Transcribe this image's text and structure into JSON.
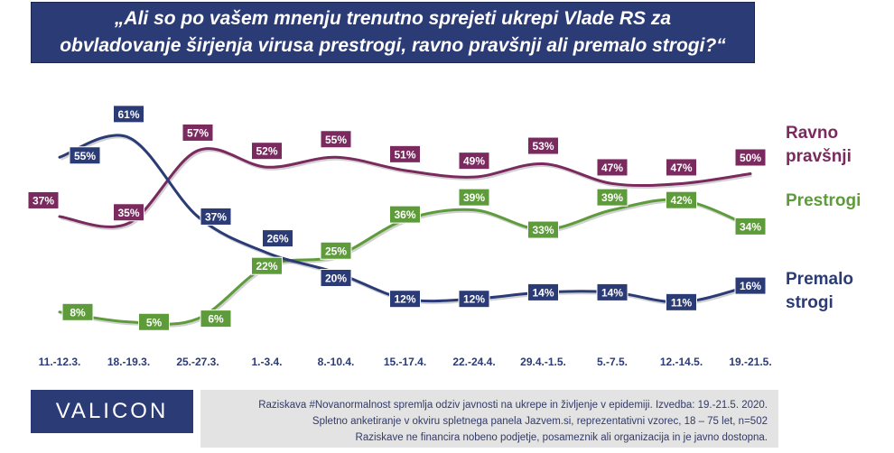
{
  "title": "„Ali so po vašem mnenju trenutno sprejeti ukrepi Vlade RS za obvladovanje širjenja virusa prestrogi, ravno pravšnji ali premalo strogi?“",
  "chart_data": {
    "type": "line",
    "categories": [
      "11.-12.3.",
      "18.-19.3.",
      "25.-27.3.",
      "1.-3.4.",
      "8.-10.4.",
      "15.-17.4.",
      "22.-24.4.",
      "29.4.-1.5.",
      "5.-7.5.",
      "12.-14.5.",
      "19.-21.5."
    ],
    "series": [
      {
        "name": "Ravno pravšnji",
        "key": "ravno",
        "color": "#7a2a5e",
        "values": [
          37,
          35,
          57,
          52,
          55,
          51,
          49,
          53,
          47,
          47,
          50
        ]
      },
      {
        "name": "Prestrogi",
        "key": "prestrogi",
        "color": "#5e9b3a",
        "values": [
          8,
          5,
          6,
          22,
          25,
          36,
          39,
          33,
          39,
          42,
          34
        ]
      },
      {
        "name": "Premalo strogi",
        "key": "premalo",
        "color": "#2b3b76",
        "values": [
          55,
          61,
          37,
          26,
          20,
          12,
          12,
          14,
          14,
          11,
          16
        ]
      }
    ],
    "value_suffix": "%",
    "legend_placement": "right",
    "grid": false
  },
  "logo": "VALICON",
  "footnote": [
    "Raziskava #Novanormalnost spremlja odziv javnosti na ukrepe in življenje v epidemiji. Izvedba: 19.-21.5. 2020.",
    "Spletno anketiranje v okviru spletnega panela Jazvem.si, reprezentativni vzorec, 18 – 75 let, n=502",
    "Raziskave ne financira nobeno podjetje, posameznik ali organizacija in je javno dostopna."
  ]
}
